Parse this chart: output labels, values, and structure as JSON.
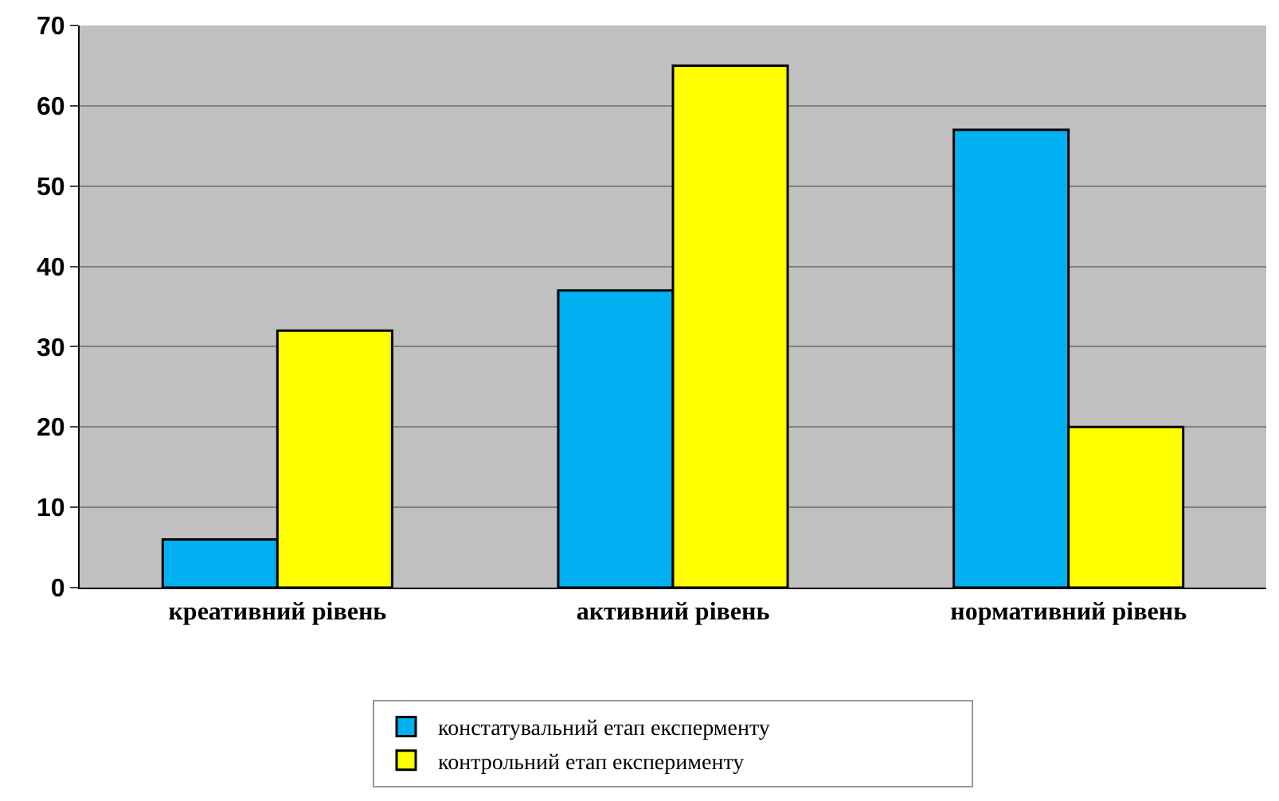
{
  "chart_data": {
    "type": "bar",
    "categories": [
      "креативний рівень",
      "активний рівень",
      "нормативний рівень"
    ],
    "series": [
      {
        "name": "констатувальний етап експерменту",
        "color": "#00b0f0",
        "values": [
          6,
          37,
          57
        ]
      },
      {
        "name": "контрольний етап експерименту",
        "color": "#ffff00",
        "values": [
          32,
          65,
          20
        ]
      }
    ],
    "ylim": [
      0,
      70
    ],
    "yticks": [
      0,
      10,
      20,
      30,
      40,
      50,
      60,
      70
    ],
    "grid": "y",
    "legend": "bottom"
  }
}
